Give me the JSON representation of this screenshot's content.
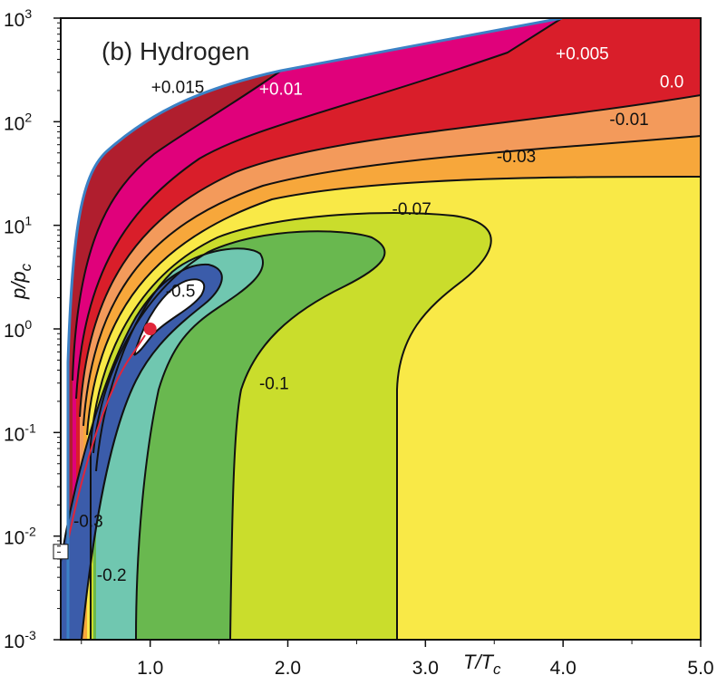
{
  "chart_data": {
    "type": "contour",
    "title": "(b) Hydrogen",
    "xlabel": "T/T",
    "xlabel_sub": "c",
    "ylabel": "p/p",
    "ylabel_sub": "c",
    "xlim": [
      0.35,
      5.0
    ],
    "ylim_log10": [
      -3,
      3
    ],
    "yscale": "log",
    "x_ticks": [
      "1.0",
      "2.0",
      "3.0",
      "4.0",
      "5.0"
    ],
    "y_ticks": [
      {
        "base": "10",
        "exp": "-3"
      },
      {
        "base": "10",
        "exp": "-2"
      },
      {
        "base": "10",
        "exp": "-1"
      },
      {
        "base": "10",
        "exp": "0"
      },
      {
        "base": "10",
        "exp": "1"
      },
      {
        "base": "10",
        "exp": "2"
      },
      {
        "base": "10",
        "exp": "3"
      }
    ],
    "colors": {
      "p015": "#b01e2e",
      "p010": "#e0017b",
      "p005": "#d91e2a",
      "zero": "#f39a5b",
      "m001": "#f7a73b",
      "m003": "#f9e947",
      "m007": "#cadd2c",
      "m010": "#69b84f",
      "m020": "#70c7b0",
      "m030": "#3b5caa",
      "m050": "#ffffff",
      "boundary": "#3b82c6",
      "critical_point": "#e0253a",
      "triple_point": "#ffffff"
    },
    "contour_labels": [
      {
        "text": "+0.015",
        "x": 1.2,
        "logp": 2.28,
        "color": "#111111"
      },
      {
        "text": "+0.01",
        "x": 1.95,
        "logp": 2.26,
        "color": "#ffffff"
      },
      {
        "text": "+0.005",
        "x": 4.14,
        "logp": 2.6,
        "color": "#ffffff"
      },
      {
        "text": "0.0",
        "x": 4.79,
        "logp": 2.33,
        "color": "#ffffff"
      },
      {
        "text": "-0.01",
        "x": 4.48,
        "logp": 1.97,
        "color": "#111111"
      },
      {
        "text": "-0.03",
        "x": 3.66,
        "logp": 1.61,
        "color": "#111111"
      },
      {
        "text": "-0.07",
        "x": 2.9,
        "logp": 1.1,
        "color": "#111111"
      },
      {
        "text": "-0.5",
        "x": 1.22,
        "logp": 0.31,
        "color": "#111111"
      },
      {
        "text": "-0.1",
        "x": 1.9,
        "logp": -0.58,
        "color": "#111111"
      },
      {
        "text": "-0.3",
        "x": 0.55,
        "logp": -1.91,
        "color": "#111111"
      },
      {
        "text": "-0.2",
        "x": 0.72,
        "logp": -2.43,
        "color": "#111111"
      }
    ],
    "critical_point": {
      "x": 1.0,
      "logp": 0.0
    },
    "triple_point": {
      "x": 0.35,
      "logp": -2.15
    }
  }
}
